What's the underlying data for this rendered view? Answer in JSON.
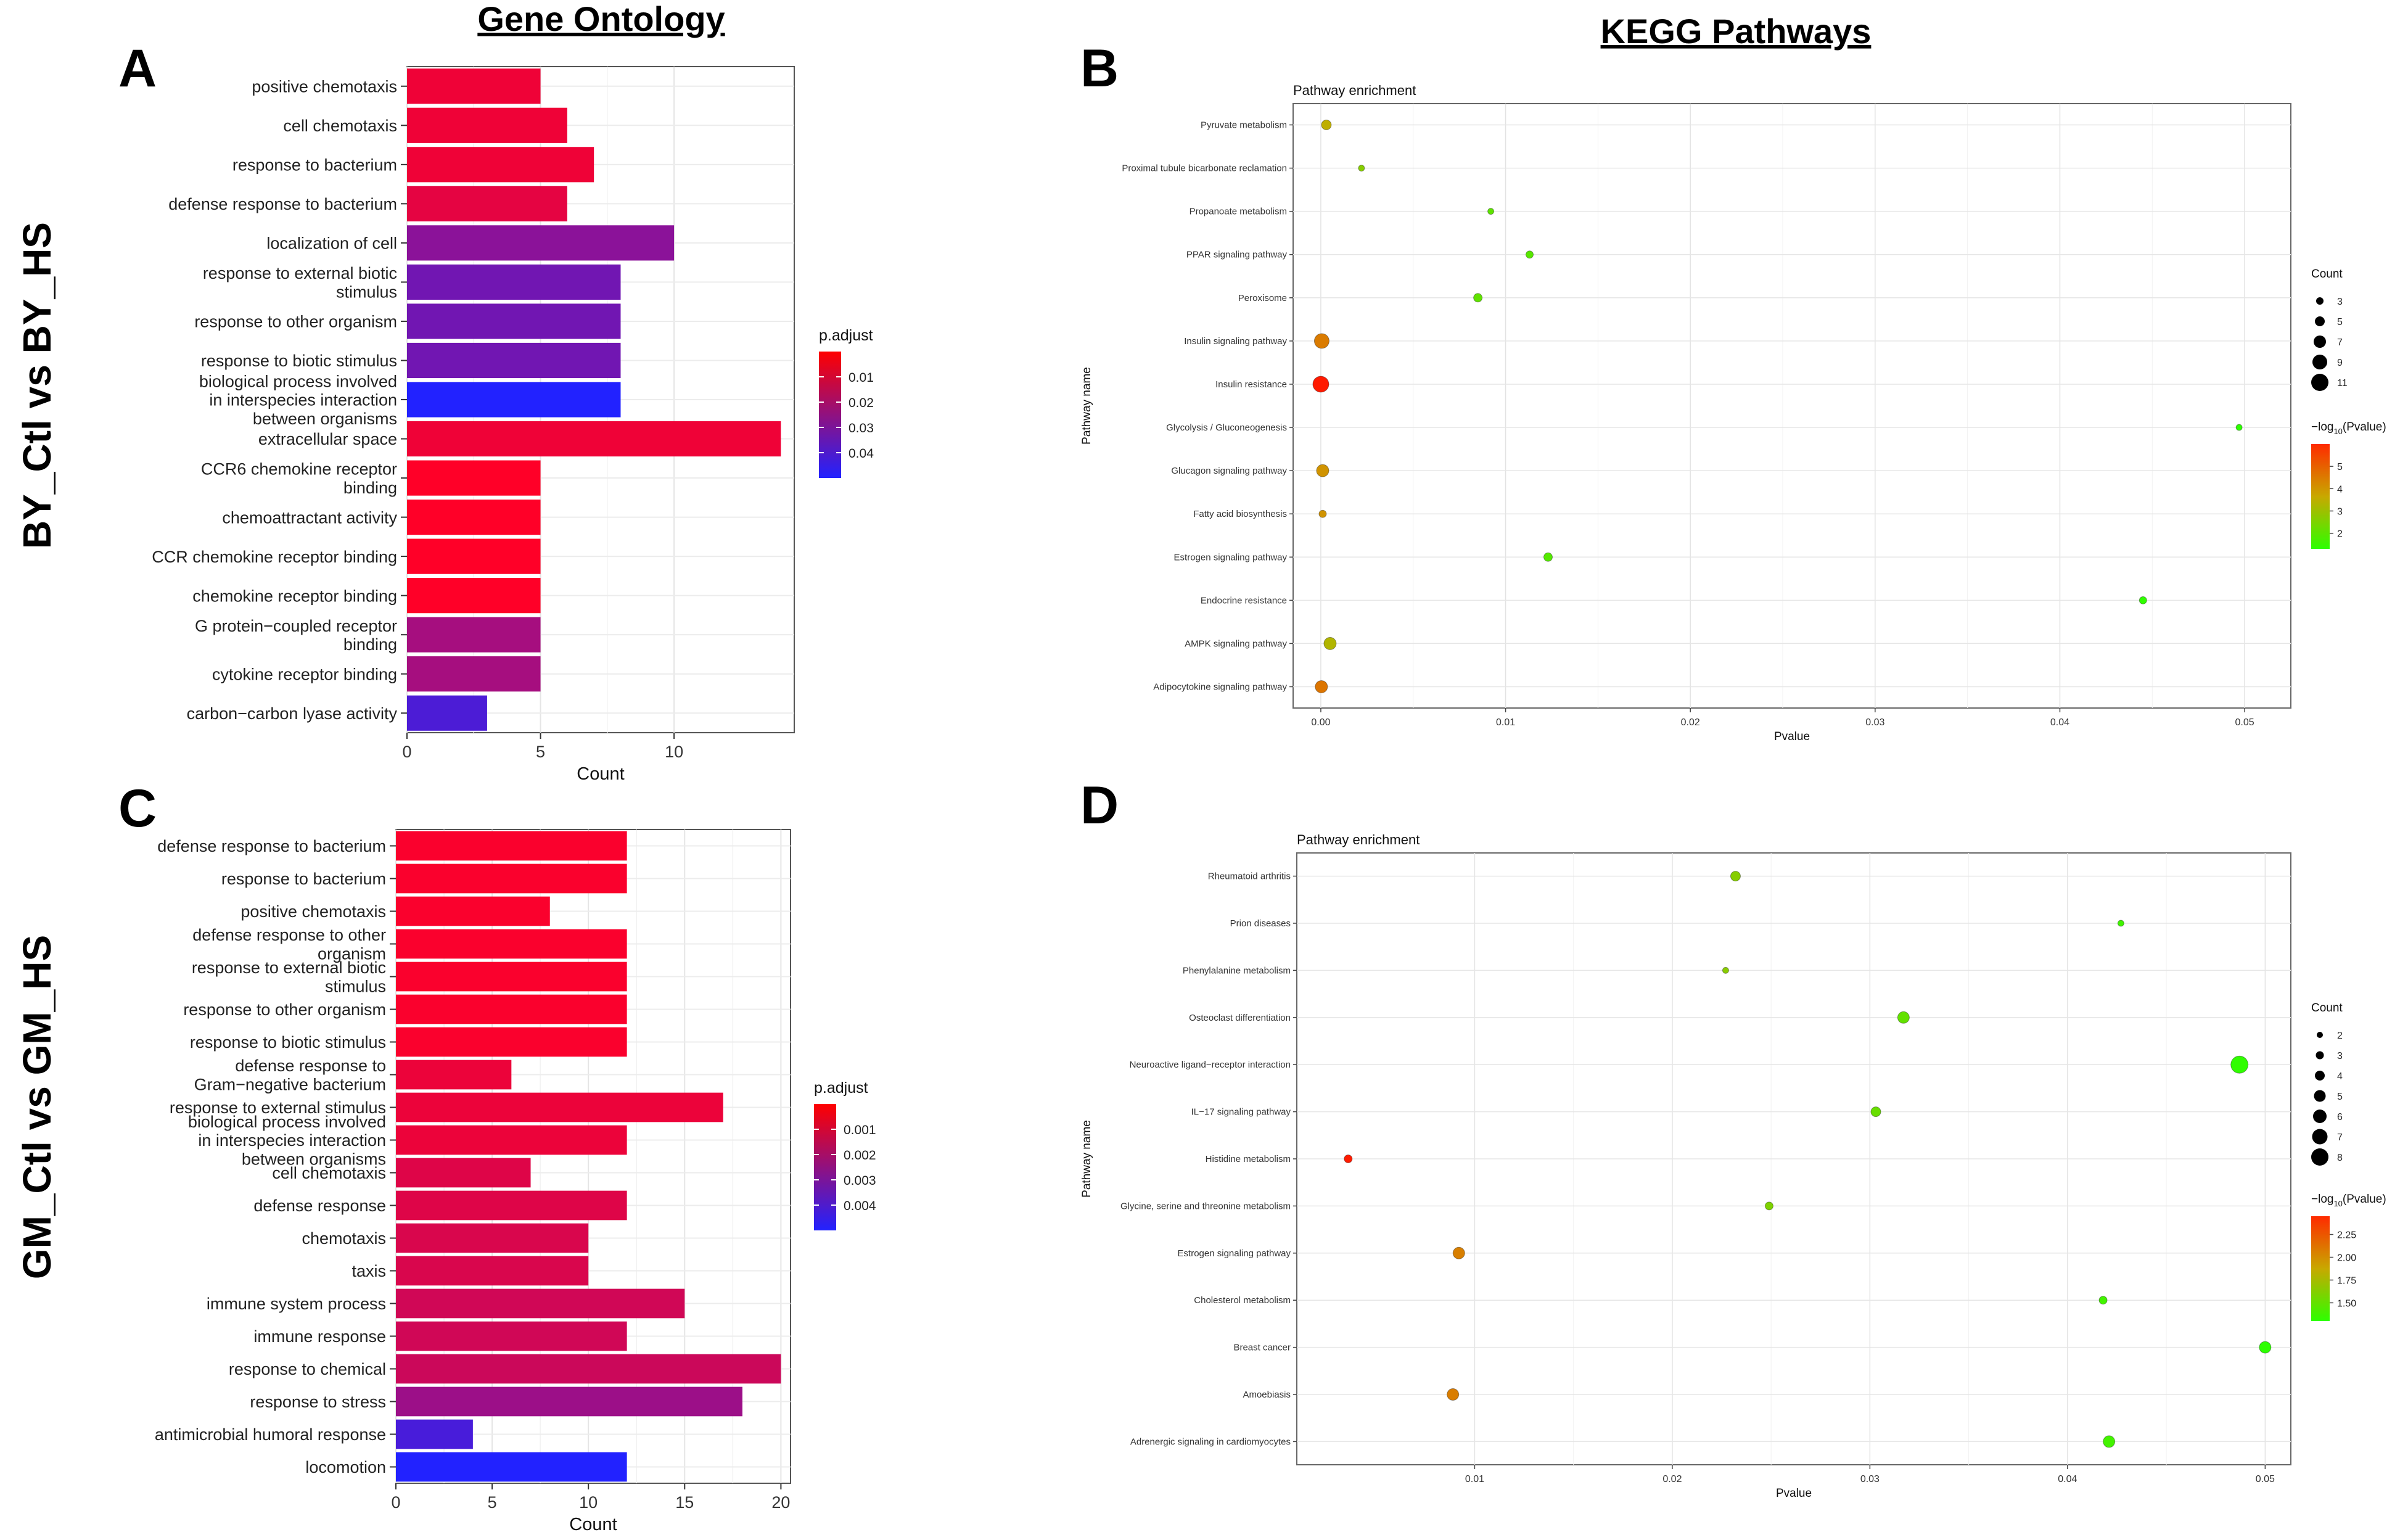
{
  "header": {
    "go": "Gene Ontology",
    "kegg": "KEGG Pathways"
  },
  "rows": {
    "top": "BY_Ctl vs BY_HS",
    "bottom": "GM_Ctl vs GM_HS"
  },
  "chart_data": [
    {
      "panel": "A",
      "type": "bar",
      "orientation": "horizontal",
      "xlabel": "Count",
      "xlim": [
        0,
        14.5
      ],
      "xticks": [
        0,
        5,
        10
      ],
      "legend_title": "p.adjust",
      "legend_ticks": [
        "0.01",
        "0.02",
        "0.03",
        "0.04"
      ],
      "color_range": [
        0.003,
        0.045
      ],
      "colors": {
        "low": "#ff0000",
        "high": "#2222ff"
      },
      "categories": [
        {
          "lines": [
            "positive chemotaxis"
          ],
          "value": 5,
          "padj": 0.006
        },
        {
          "lines": [
            "cell chemotaxis"
          ],
          "value": 6,
          "padj": 0.006
        },
        {
          "lines": [
            "response to bacterium"
          ],
          "value": 7,
          "padj": 0.006
        },
        {
          "lines": [
            "defense response to bacterium"
          ],
          "value": 6,
          "padj": 0.008
        },
        {
          "lines": [
            "localization of cell"
          ],
          "value": 10,
          "padj": 0.025
        },
        {
          "lines": [
            "response to external biotic",
            "stimulus"
          ],
          "value": 8,
          "padj": 0.03
        },
        {
          "lines": [
            "response to other organism"
          ],
          "value": 8,
          "padj": 0.03
        },
        {
          "lines": [
            "response to biotic stimulus"
          ],
          "value": 8,
          "padj": 0.03
        },
        {
          "lines": [
            "biological process involved",
            "in interspecies interaction",
            "between organisms"
          ],
          "value": 8,
          "padj": 0.045
        },
        {
          "lines": [
            "extracellular space"
          ],
          "value": 14,
          "padj": 0.006
        },
        {
          "lines": [
            "CCR6 chemokine receptor",
            "binding"
          ],
          "value": 5,
          "padj": 0.003
        },
        {
          "lines": [
            "chemoattractant activity"
          ],
          "value": 5,
          "padj": 0.003
        },
        {
          "lines": [
            "CCR chemokine receptor binding"
          ],
          "value": 5,
          "padj": 0.003
        },
        {
          "lines": [
            "chemokine receptor binding"
          ],
          "value": 5,
          "padj": 0.003
        },
        {
          "lines": [
            "G protein−coupled receptor",
            "binding"
          ],
          "value": 5,
          "padj": 0.02
        },
        {
          "lines": [
            "cytokine receptor binding"
          ],
          "value": 5,
          "padj": 0.02
        },
        {
          "lines": [
            "carbon−carbon lyase activity"
          ],
          "value": 3,
          "padj": 0.037
        }
      ]
    },
    {
      "panel": "B",
      "type": "scatter",
      "title": "Pathway enrichment",
      "xlabel": "Pvalue",
      "ylabel": "Pathway name",
      "xlim": [
        -0.0015,
        0.0525
      ],
      "xticks": [
        0.0,
        0.01,
        0.02,
        0.03,
        0.04,
        0.05
      ],
      "xtick_labels": [
        "0.00",
        "0.01",
        "0.02",
        "0.03",
        "0.04",
        "0.05"
      ],
      "size_legend_title": "Count",
      "size_legend": [
        3,
        5,
        7,
        9,
        11
      ],
      "size_range": [
        2,
        11
      ],
      "color_legend_title": "−log10(Pvalue)",
      "color_legend_ticks": [
        5,
        4,
        3,
        2
      ],
      "color_range": [
        1.3,
        6
      ],
      "points": [
        {
          "pathway": "Pyruvate metabolism",
          "pvalue": 0.0003,
          "count": 5,
          "neglog10p": 3.5
        },
        {
          "pathway": "Proximal tubule bicarbonate reclamation",
          "pvalue": 0.0022,
          "count": 2,
          "neglog10p": 2.65
        },
        {
          "pathway": "Propanoate metabolism",
          "pvalue": 0.0092,
          "count": 2,
          "neglog10p": 2.05
        },
        {
          "pathway": "PPAR signaling pathway",
          "pvalue": 0.0113,
          "count": 3,
          "neglog10p": 1.95
        },
        {
          "pathway": "Peroxisome",
          "pvalue": 0.0085,
          "count": 4,
          "neglog10p": 2.07
        },
        {
          "pathway": "Insulin signaling pathway",
          "pvalue": 5e-05,
          "count": 9,
          "neglog10p": 4.4
        },
        {
          "pathway": "Insulin resistance",
          "pvalue": 1e-06,
          "count": 10,
          "neglog10p": 6.0
        },
        {
          "pathway": "Glycolysis / Gluconeogenesis",
          "pvalue": 0.0497,
          "count": 2,
          "neglog10p": 1.3
        },
        {
          "pathway": "Glucagon signaling pathway",
          "pvalue": 0.0001,
          "count": 7,
          "neglog10p": 4.0
        },
        {
          "pathway": "Fatty acid biosynthesis",
          "pvalue": 0.0001,
          "count": 3,
          "neglog10p": 4.0
        },
        {
          "pathway": "Estrogen signaling pathway",
          "pvalue": 0.0123,
          "count": 4,
          "neglog10p": 1.9
        },
        {
          "pathway": "Endocrine resistance",
          "pvalue": 0.0445,
          "count": 3,
          "neglog10p": 1.35
        },
        {
          "pathway": "AMPK signaling pathway",
          "pvalue": 0.0005,
          "count": 7,
          "neglog10p": 3.3
        },
        {
          "pathway": "Adipocytokine signaling pathway",
          "pvalue": 3e-05,
          "count": 7,
          "neglog10p": 4.5
        }
      ]
    },
    {
      "panel": "C",
      "type": "bar",
      "orientation": "horizontal",
      "xlabel": "Count",
      "xlim": [
        0,
        20.5
      ],
      "xticks": [
        0,
        5,
        10,
        15,
        20
      ],
      "legend_title": "p.adjust",
      "legend_ticks": [
        "0.001",
        "0.002",
        "0.003",
        "0.004"
      ],
      "color_range": [
        0.0001,
        0.0048
      ],
      "colors": {
        "low": "#ff0000",
        "high": "#2222ff"
      },
      "categories": [
        {
          "lines": [
            "defense response to bacterium"
          ],
          "value": 12,
          "padj": 0.0002
        },
        {
          "lines": [
            "response to bacterium"
          ],
          "value": 12,
          "padj": 0.0002
        },
        {
          "lines": [
            "positive chemotaxis"
          ],
          "value": 8,
          "padj": 0.0002
        },
        {
          "lines": [
            "defense response to other",
            "organism"
          ],
          "value": 12,
          "padj": 0.0002
        },
        {
          "lines": [
            "response to external biotic",
            "stimulus"
          ],
          "value": 12,
          "padj": 0.0002
        },
        {
          "lines": [
            "response to other organism"
          ],
          "value": 12,
          "padj": 0.0002
        },
        {
          "lines": [
            "response to biotic stimulus"
          ],
          "value": 12,
          "padj": 0.0002
        },
        {
          "lines": [
            "defense response to",
            "Gram−negative bacterium"
          ],
          "value": 6,
          "padj": 0.0005
        },
        {
          "lines": [
            "response to external stimulus"
          ],
          "value": 17,
          "padj": 0.0005
        },
        {
          "lines": [
            "biological process involved",
            "in interspecies interaction",
            "between organisms"
          ],
          "value": 12,
          "padj": 0.0005
        },
        {
          "lines": [
            "cell chemotaxis"
          ],
          "value": 7,
          "padj": 0.0008
        },
        {
          "lines": [
            "defense response"
          ],
          "value": 12,
          "padj": 0.0008
        },
        {
          "lines": [
            "chemotaxis"
          ],
          "value": 10,
          "padj": 0.0009
        },
        {
          "lines": [
            "taxis"
          ],
          "value": 10,
          "padj": 0.0009
        },
        {
          "lines": [
            "immune system process"
          ],
          "value": 15,
          "padj": 0.0011
        },
        {
          "lines": [
            "immune response"
          ],
          "value": 12,
          "padj": 0.0011
        },
        {
          "lines": [
            "response to chemical"
          ],
          "value": 20,
          "padj": 0.0012
        },
        {
          "lines": [
            "response to stress"
          ],
          "value": 18,
          "padj": 0.0022
        },
        {
          "lines": [
            "antimicrobial humoral response"
          ],
          "value": 4,
          "padj": 0.004
        },
        {
          "lines": [
            "locomotion"
          ],
          "value": 12,
          "padj": 0.0048
        }
      ]
    },
    {
      "panel": "D",
      "type": "scatter",
      "title": "Pathway enrichment",
      "xlabel": "Pvalue",
      "ylabel": "Pathway name",
      "xlim": [
        0.001,
        0.0513
      ],
      "xticks": [
        0.01,
        0.02,
        0.03,
        0.04,
        0.05
      ],
      "xtick_labels": [
        "0.01",
        "0.02",
        "0.03",
        "0.04",
        "0.05"
      ],
      "size_legend_title": "Count",
      "size_legend": [
        2,
        3,
        4,
        5,
        6,
        7,
        8
      ],
      "size_range": [
        2,
        8
      ],
      "color_legend_title": "−log10(Pvalue)",
      "color_legend_ticks": [
        2.25,
        2.0,
        1.75,
        1.5
      ],
      "color_legend_tick_labels": [
        "2.25",
        "2.00",
        "1.75",
        "1.50"
      ],
      "color_range": [
        1.3,
        2.45
      ],
      "points": [
        {
          "pathway": "Rheumatoid arthritis",
          "pvalue": 0.0232,
          "count": 4,
          "neglog10p": 1.63
        },
        {
          "pathway": "Prion diseases",
          "pvalue": 0.0427,
          "count": 2,
          "neglog10p": 1.37
        },
        {
          "pathway": "Phenylalanine metabolism",
          "pvalue": 0.0227,
          "count": 2,
          "neglog10p": 1.64
        },
        {
          "pathway": "Osteoclast differentiation",
          "pvalue": 0.0317,
          "count": 5,
          "neglog10p": 1.5
        },
        {
          "pathway": "Neuroactive ligand−receptor interaction",
          "pvalue": 0.0487,
          "count": 8,
          "neglog10p": 1.31
        },
        {
          "pathway": "IL−17 signaling pathway",
          "pvalue": 0.0303,
          "count": 4,
          "neglog10p": 1.52
        },
        {
          "pathway": "Histidine metabolism",
          "pvalue": 0.0036,
          "count": 3,
          "neglog10p": 2.44
        },
        {
          "pathway": "Glycine, serine and threonine metabolism",
          "pvalue": 0.0249,
          "count": 3,
          "neglog10p": 1.6
        },
        {
          "pathway": "Estrogen signaling pathway",
          "pvalue": 0.0092,
          "count": 5,
          "neglog10p": 2.04
        },
        {
          "pathway": "Cholesterol metabolism",
          "pvalue": 0.0418,
          "count": 3,
          "neglog10p": 1.38
        },
        {
          "pathway": "Breast cancer",
          "pvalue": 0.05,
          "count": 5,
          "neglog10p": 1.3
        },
        {
          "pathway": "Amoebiasis",
          "pvalue": 0.0089,
          "count": 5,
          "neglog10p": 2.05
        },
        {
          "pathway": "Adrenergic signaling in cardiomyocytes",
          "pvalue": 0.0421,
          "count": 5,
          "neglog10p": 1.38
        }
      ]
    }
  ]
}
